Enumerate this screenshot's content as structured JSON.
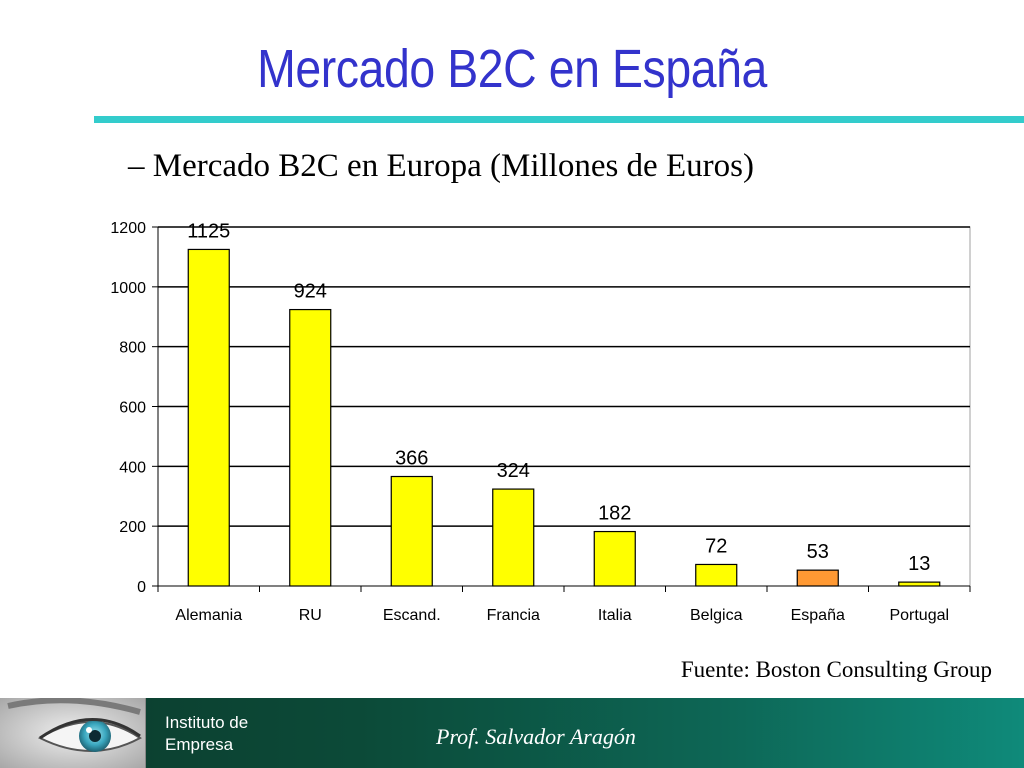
{
  "slide": {
    "title": "Mercado B2C en España",
    "subtitle": "– Mercado B2C en Europa (Millones de Euros)",
    "source": "Fuente: Boston Consulting Group"
  },
  "footer": {
    "institute_line1": "Instituto de",
    "institute_line2": "Empresa",
    "author": "Prof.  Salvador Aragón"
  },
  "colors": {
    "title": "#3333cc",
    "rule": "#33cccc",
    "bar": "#ffff00",
    "bar_highlight": "#ff9933",
    "footer": "#0c4a38"
  },
  "chart_data": {
    "type": "bar",
    "categories": [
      "Alemania",
      "RU",
      "Escand.",
      "Francia",
      "Italia",
      "Belgica",
      "España",
      "Portugal"
    ],
    "values": [
      1125,
      924,
      366,
      324,
      182,
      72,
      53,
      13
    ],
    "highlight_category": "España",
    "y_ticks": [
      "0",
      "200",
      "400",
      "600",
      "800",
      "1000",
      "1200"
    ],
    "ylim": [
      0,
      1200
    ],
    "grid": true,
    "legend": "none"
  }
}
